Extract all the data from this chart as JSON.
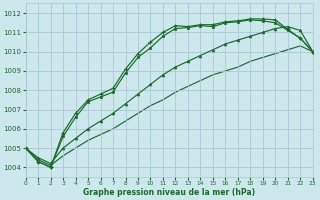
{
  "title": "Graphe pression niveau de la mer (hPa)",
  "background_color": "#cce8ec",
  "grid_color": "#aac8d0",
  "line_color": "#1a6b2a",
  "xlim": [
    0,
    23
  ],
  "ylim": [
    1003.5,
    1012.5
  ],
  "yticks": [
    1004,
    1005,
    1006,
    1007,
    1008,
    1009,
    1010,
    1011,
    1012
  ],
  "xticks": [
    0,
    1,
    2,
    3,
    4,
    5,
    6,
    7,
    8,
    9,
    10,
    11,
    12,
    13,
    14,
    15,
    16,
    17,
    18,
    19,
    20,
    21,
    22,
    23
  ],
  "s1_x": [
    0,
    1,
    2,
    3,
    4,
    5,
    6,
    7,
    8,
    9,
    10,
    11,
    12,
    13,
    14,
    15,
    16,
    17,
    18,
    19,
    20,
    21,
    22,
    23
  ],
  "s1_y": [
    1005.0,
    1004.3,
    1004.0,
    1005.8,
    1006.8,
    1007.5,
    1007.8,
    1008.1,
    1009.1,
    1009.9,
    1010.5,
    1011.0,
    1011.35,
    1011.3,
    1011.4,
    1011.4,
    1011.55,
    1011.6,
    1011.7,
    1011.7,
    1011.65,
    1011.15,
    1010.7,
    1010.0
  ],
  "s2_x": [
    0,
    1,
    2,
    3,
    4,
    5,
    6,
    7,
    8,
    9,
    10,
    11,
    12,
    13,
    14,
    15,
    16,
    17,
    18,
    19,
    20,
    21,
    22,
    23
  ],
  "s2_y": [
    1005.0,
    1004.3,
    1004.0,
    1005.6,
    1006.6,
    1007.4,
    1007.65,
    1007.9,
    1008.9,
    1009.7,
    1010.2,
    1010.8,
    1011.2,
    1011.25,
    1011.35,
    1011.3,
    1011.5,
    1011.55,
    1011.65,
    1011.6,
    1011.5,
    1011.1,
    1010.7,
    1010.0
  ],
  "s3_x": [
    0,
    1,
    2,
    3,
    4,
    5,
    6,
    7,
    8,
    9,
    10,
    11,
    12,
    13,
    14,
    15,
    16,
    17,
    18,
    19,
    20,
    21,
    22,
    23
  ],
  "s3_y": [
    1005.0,
    1004.5,
    1004.2,
    1005.0,
    1005.5,
    1006.0,
    1006.4,
    1006.8,
    1007.3,
    1007.8,
    1008.3,
    1008.8,
    1009.2,
    1009.5,
    1009.8,
    1010.1,
    1010.4,
    1010.6,
    1010.8,
    1011.0,
    1011.2,
    1011.3,
    1011.1,
    1010.0
  ],
  "s4_x": [
    0,
    1,
    2,
    3,
    4,
    5,
    6,
    7,
    8,
    9,
    10,
    11,
    12,
    13,
    14,
    15,
    16,
    17,
    18,
    19,
    20,
    21,
    22,
    23
  ],
  "s4_y": [
    1005.0,
    1004.4,
    1004.1,
    1004.6,
    1005.0,
    1005.4,
    1005.7,
    1006.0,
    1006.4,
    1006.8,
    1007.2,
    1007.5,
    1007.9,
    1008.2,
    1008.5,
    1008.8,
    1009.0,
    1009.2,
    1009.5,
    1009.7,
    1009.9,
    1010.1,
    1010.3,
    1010.0
  ]
}
